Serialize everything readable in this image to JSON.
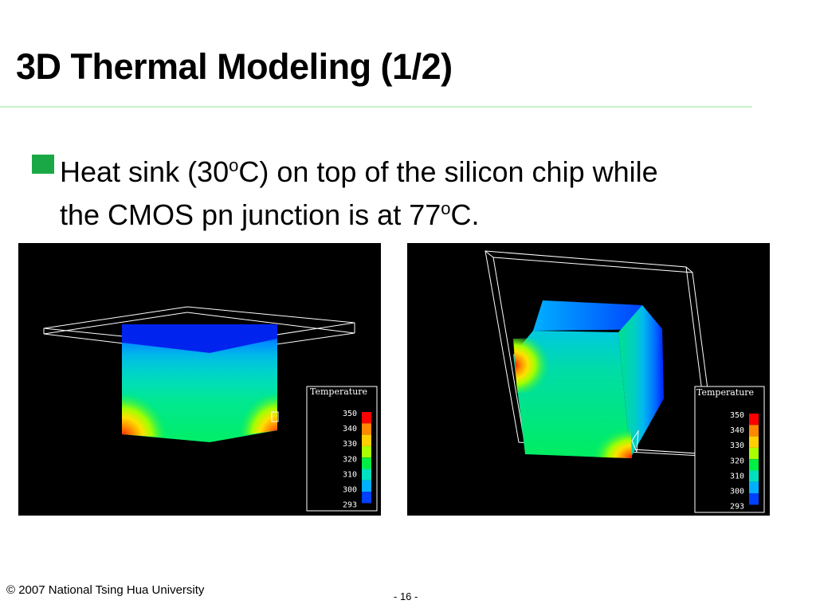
{
  "slide": {
    "title": "3D Thermal Modeling (1/2)",
    "bullet": {
      "line1_pre": "Heat sink (30",
      "line1_sup": "o",
      "line1_post": "C) on top of the silicon chip while",
      "line2_pre": "the CMOS pn junction is at 77",
      "line2_sup": "o",
      "line2_post": "C."
    },
    "footer_left": "© 2007 National Tsing Hua University",
    "footer_center": "- 16 -"
  },
  "colors": {
    "accent_bullet": "#1aa846",
    "title_rule": "#c8f0c8",
    "panel_bg": "#000000"
  },
  "legend": {
    "title": "Temperature",
    "ticks": [
      "350",
      "340",
      "330",
      "320",
      "310",
      "300",
      "293"
    ],
    "scale_colors": [
      "#ff0000",
      "#ff8800",
      "#ffd000",
      "#aaff00",
      "#00ee44",
      "#00e0c0",
      "#00b0ff",
      "#0040ff"
    ]
  },
  "images": [
    {
      "name": "thermal-model-front-view"
    },
    {
      "name": "thermal-model-angled-view"
    }
  ]
}
